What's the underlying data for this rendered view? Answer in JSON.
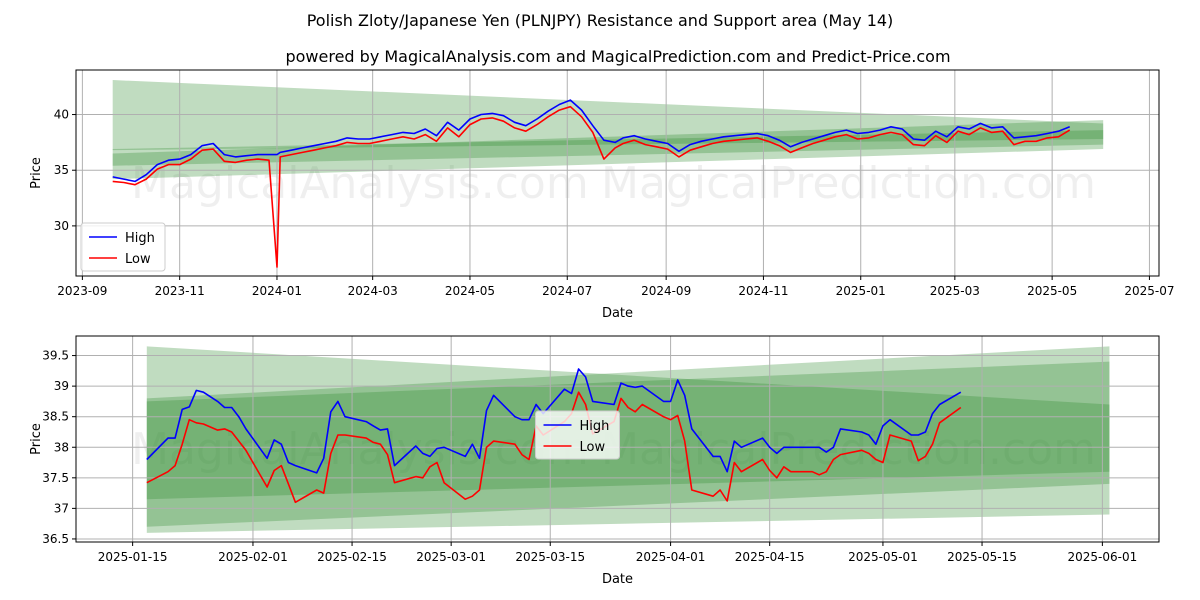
{
  "title": "Polish Zloty/Japanese Yen (PLNJPY) Resistance and Support area (May 14)",
  "subtitle": "powered by MagicalAnalysis.com and MagicalPrediction.com and Predict-Price.com",
  "watermarks": [
    "MagicalAnalysis.com",
    "MagicalPrediction.com"
  ],
  "colors": {
    "high": "#0000ff",
    "low": "#ff0000",
    "band": "#2e8b2e",
    "grid": "#b0b0b0"
  },
  "chart_data": [
    {
      "type": "line",
      "xlabel": "Date",
      "ylabel": "Price",
      "xlim": [
        "2023-08-28",
        "2025-07-07"
      ],
      "ylim": [
        25.5,
        44
      ],
      "grid": true,
      "legend_position": "lower-left",
      "x_ticks": [
        "2023-09",
        "2023-11",
        "2024-01",
        "2024-03",
        "2024-05",
        "2024-07",
        "2024-09",
        "2024-11",
        "2025-01",
        "2025-03",
        "2025-05",
        "2025-07"
      ],
      "x_tick_dates": [
        "2023-09-01",
        "2023-11-01",
        "2024-01-01",
        "2024-03-01",
        "2024-05-01",
        "2024-07-01",
        "2024-09-01",
        "2024-11-01",
        "2025-01-01",
        "2025-03-01",
        "2025-05-01",
        "2025-07-01"
      ],
      "y_ticks": [
        30,
        35,
        40
      ],
      "bands": [
        {
          "x": [
            "2023-09-20",
            "2025-06-02"
          ],
          "upper": [
            43.1,
            39.2
          ],
          "lower": [
            36.8,
            37.8
          ]
        },
        {
          "x": [
            "2023-09-20",
            "2025-06-02"
          ],
          "upper": [
            36.5,
            39.5
          ],
          "lower": [
            34.2,
            36.9
          ]
        },
        {
          "x": [
            "2023-09-20",
            "2025-06-02"
          ],
          "upper": [
            36.9,
            38.6
          ],
          "lower": [
            35.4,
            37.3
          ]
        }
      ],
      "series": [
        {
          "name": "High",
          "x": [
            "2023-09-20",
            "2023-09-27",
            "2023-10-04",
            "2023-10-11",
            "2023-10-18",
            "2023-10-25",
            "2023-11-01",
            "2023-11-08",
            "2023-11-15",
            "2023-11-22",
            "2023-11-29",
            "2023-12-06",
            "2023-12-13",
            "2023-12-20",
            "2023-12-27",
            "2024-01-01",
            "2024-01-03",
            "2024-01-10",
            "2024-01-17",
            "2024-01-24",
            "2024-01-31",
            "2024-02-07",
            "2024-02-14",
            "2024-02-21",
            "2024-02-28",
            "2024-03-06",
            "2024-03-13",
            "2024-03-20",
            "2024-03-27",
            "2024-04-03",
            "2024-04-10",
            "2024-04-17",
            "2024-04-24",
            "2024-05-01",
            "2024-05-08",
            "2024-05-15",
            "2024-05-22",
            "2024-05-29",
            "2024-06-05",
            "2024-06-12",
            "2024-06-19",
            "2024-06-26",
            "2024-07-03",
            "2024-07-10",
            "2024-07-17",
            "2024-07-24",
            "2024-07-31",
            "2024-08-05",
            "2024-08-12",
            "2024-08-19",
            "2024-08-26",
            "2024-09-02",
            "2024-09-09",
            "2024-09-16",
            "2024-09-23",
            "2024-09-30",
            "2024-10-07",
            "2024-10-14",
            "2024-10-21",
            "2024-10-28",
            "2024-11-04",
            "2024-11-11",
            "2024-11-18",
            "2024-11-25",
            "2024-12-02",
            "2024-12-09",
            "2024-12-16",
            "2024-12-23",
            "2024-12-30",
            "2025-01-06",
            "2025-01-13",
            "2025-01-20",
            "2025-01-27",
            "2025-02-03",
            "2025-02-10",
            "2025-02-17",
            "2025-02-24",
            "2025-03-03",
            "2025-03-10",
            "2025-03-17",
            "2025-03-24",
            "2025-03-31",
            "2025-04-07",
            "2025-04-14",
            "2025-04-21",
            "2025-04-28",
            "2025-05-05",
            "2025-05-12"
          ],
          "y": [
            34.4,
            34.2,
            34.0,
            34.6,
            35.5,
            35.9,
            36.0,
            36.4,
            37.2,
            37.4,
            36.4,
            36.2,
            36.3,
            36.4,
            36.4,
            36.4,
            36.6,
            36.8,
            37.0,
            37.2,
            37.4,
            37.6,
            37.9,
            37.8,
            37.8,
            38.0,
            38.2,
            38.4,
            38.3,
            38.7,
            38.1,
            39.3,
            38.6,
            39.6,
            40.0,
            40.1,
            39.9,
            39.3,
            39.0,
            39.6,
            40.3,
            40.9,
            41.3,
            40.4,
            39.0,
            37.7,
            37.5,
            37.9,
            38.1,
            37.8,
            37.6,
            37.4,
            36.7,
            37.3,
            37.6,
            37.8,
            38.0,
            38.1,
            38.2,
            38.3,
            38.1,
            37.7,
            37.1,
            37.5,
            37.8,
            38.1,
            38.4,
            38.6,
            38.3,
            38.4,
            38.6,
            38.9,
            38.7,
            37.8,
            37.7,
            38.5,
            38.0,
            38.9,
            38.7,
            39.2,
            38.8,
            38.9,
            37.9,
            38.0,
            38.1,
            38.3,
            38.5,
            38.9
          ]
        },
        {
          "name": "Low",
          "x": [
            "2023-09-20",
            "2023-09-27",
            "2023-10-04",
            "2023-10-11",
            "2023-10-18",
            "2023-10-25",
            "2023-11-01",
            "2023-11-08",
            "2023-11-15",
            "2023-11-22",
            "2023-11-29",
            "2023-12-06",
            "2023-12-13",
            "2023-12-20",
            "2023-12-27",
            "2024-01-01",
            "2024-01-03",
            "2024-01-10",
            "2024-01-17",
            "2024-01-24",
            "2024-01-31",
            "2024-02-07",
            "2024-02-14",
            "2024-02-21",
            "2024-02-28",
            "2024-03-06",
            "2024-03-13",
            "2024-03-20",
            "2024-03-27",
            "2024-04-03",
            "2024-04-10",
            "2024-04-17",
            "2024-04-24",
            "2024-05-01",
            "2024-05-08",
            "2024-05-15",
            "2024-05-22",
            "2024-05-29",
            "2024-06-05",
            "2024-06-12",
            "2024-06-19",
            "2024-06-26",
            "2024-07-03",
            "2024-07-10",
            "2024-07-17",
            "2024-07-24",
            "2024-07-31",
            "2024-08-05",
            "2024-08-12",
            "2024-08-19",
            "2024-08-26",
            "2024-09-02",
            "2024-09-09",
            "2024-09-16",
            "2024-09-23",
            "2024-09-30",
            "2024-10-07",
            "2024-10-14",
            "2024-10-21",
            "2024-10-28",
            "2024-11-04",
            "2024-11-11",
            "2024-11-18",
            "2024-11-25",
            "2024-12-02",
            "2024-12-09",
            "2024-12-16",
            "2024-12-23",
            "2024-12-30",
            "2025-01-06",
            "2025-01-13",
            "2025-01-20",
            "2025-01-27",
            "2025-02-03",
            "2025-02-10",
            "2025-02-17",
            "2025-02-24",
            "2025-03-03",
            "2025-03-10",
            "2025-03-17",
            "2025-03-24",
            "2025-03-31",
            "2025-04-07",
            "2025-04-14",
            "2025-04-21",
            "2025-04-28",
            "2025-05-05",
            "2025-05-12"
          ],
          "y": [
            34.0,
            33.9,
            33.7,
            34.2,
            35.1,
            35.5,
            35.5,
            36.0,
            36.8,
            36.9,
            35.8,
            35.7,
            35.9,
            36.0,
            35.9,
            26.3,
            36.2,
            36.4,
            36.6,
            36.8,
            37.0,
            37.2,
            37.5,
            37.4,
            37.4,
            37.6,
            37.8,
            38.0,
            37.8,
            38.2,
            37.6,
            38.8,
            38.0,
            39.1,
            39.6,
            39.7,
            39.4,
            38.8,
            38.5,
            39.1,
            39.8,
            40.4,
            40.7,
            39.8,
            38.4,
            36.0,
            37.0,
            37.4,
            37.7,
            37.3,
            37.1,
            36.9,
            36.2,
            36.8,
            37.1,
            37.4,
            37.6,
            37.7,
            37.8,
            37.9,
            37.6,
            37.2,
            36.6,
            37.0,
            37.4,
            37.7,
            38.0,
            38.2,
            37.8,
            37.9,
            38.2,
            38.4,
            38.2,
            37.3,
            37.2,
            38.1,
            37.5,
            38.5,
            38.2,
            38.8,
            38.4,
            38.5,
            37.3,
            37.6,
            37.6,
            37.9,
            38.0,
            38.6
          ]
        }
      ]
    },
    {
      "type": "line",
      "xlabel": "Date",
      "ylabel": "Price",
      "xlim": [
        "2025-01-07",
        "2025-06-09"
      ],
      "ylim": [
        36.45,
        39.82
      ],
      "grid": true,
      "legend_position": "center",
      "x_ticks": [
        "2025-01-15",
        "2025-02-01",
        "2025-02-15",
        "2025-03-01",
        "2025-03-15",
        "2025-04-01",
        "2025-04-15",
        "2025-05-01",
        "2025-05-15",
        "2025-06-01"
      ],
      "y_ticks": [
        36.5,
        37.0,
        37.5,
        38.0,
        38.5,
        39.0,
        39.5
      ],
      "bands": [
        {
          "x": [
            "2025-01-17",
            "2025-06-02"
          ],
          "upper": [
            39.65,
            38.7
          ],
          "lower": [
            36.7,
            37.4
          ]
        },
        {
          "x": [
            "2025-01-17",
            "2025-06-02"
          ],
          "upper": [
            38.8,
            39.65
          ],
          "lower": [
            36.6,
            36.9
          ]
        },
        {
          "x": [
            "2025-01-17",
            "2025-06-02"
          ],
          "upper": [
            38.75,
            39.4
          ],
          "lower": [
            37.15,
            37.6
          ]
        }
      ],
      "series": [
        {
          "name": "High",
          "x": [
            "2025-01-17",
            "2025-01-20",
            "2025-01-21",
            "2025-01-22",
            "2025-01-23",
            "2025-01-24",
            "2025-01-25",
            "2025-01-27",
            "2025-01-28",
            "2025-01-29",
            "2025-01-30",
            "2025-01-31",
            "2025-02-03",
            "2025-02-04",
            "2025-02-05",
            "2025-02-06",
            "2025-02-07",
            "2025-02-10",
            "2025-02-11",
            "2025-02-12",
            "2025-02-13",
            "2025-02-14",
            "2025-02-17",
            "2025-02-18",
            "2025-02-19",
            "2025-02-20",
            "2025-02-21",
            "2025-02-24",
            "2025-02-25",
            "2025-02-26",
            "2025-02-27",
            "2025-02-28",
            "2025-03-03",
            "2025-03-04",
            "2025-03-05",
            "2025-03-06",
            "2025-03-07",
            "2025-03-10",
            "2025-03-11",
            "2025-03-12",
            "2025-03-13",
            "2025-03-14",
            "2025-03-17",
            "2025-03-18",
            "2025-03-19",
            "2025-03-20",
            "2025-03-21",
            "2025-03-24",
            "2025-03-25",
            "2025-03-26",
            "2025-03-27",
            "2025-03-28",
            "2025-03-31",
            "2025-04-01",
            "2025-04-02",
            "2025-04-03",
            "2025-04-04",
            "2025-04-07",
            "2025-04-08",
            "2025-04-09",
            "2025-04-10",
            "2025-04-11",
            "2025-04-14",
            "2025-04-15",
            "2025-04-16",
            "2025-04-17",
            "2025-04-18",
            "2025-04-21",
            "2025-04-22",
            "2025-04-23",
            "2025-04-24",
            "2025-04-25",
            "2025-04-28",
            "2025-04-29",
            "2025-04-30",
            "2025-05-01",
            "2025-05-02",
            "2025-05-05",
            "2025-05-06",
            "2025-05-07",
            "2025-05-08",
            "2025-05-09",
            "2025-05-12"
          ],
          "y": [
            37.8,
            38.15,
            38.15,
            38.62,
            38.66,
            38.93,
            38.9,
            38.75,
            38.65,
            38.65,
            38.5,
            38.3,
            37.82,
            38.12,
            38.05,
            37.75,
            37.7,
            37.58,
            37.82,
            38.58,
            38.75,
            38.5,
            38.42,
            38.35,
            38.28,
            38.3,
            37.7,
            38.02,
            37.9,
            37.85,
            37.98,
            38.0,
            37.85,
            38.05,
            37.82,
            38.6,
            38.85,
            38.5,
            38.45,
            38.45,
            38.7,
            38.55,
            38.95,
            38.88,
            39.28,
            39.15,
            38.75,
            38.7,
            39.05,
            39.0,
            38.98,
            39.0,
            38.75,
            38.75,
            39.1,
            38.85,
            38.3,
            37.85,
            37.85,
            37.6,
            38.1,
            38.0,
            38.15,
            38.0,
            37.9,
            38.0,
            38.0,
            38.0,
            38.0,
            37.92,
            38.0,
            38.3,
            38.25,
            38.2,
            38.05,
            38.35,
            38.45,
            38.2,
            38.2,
            38.25,
            38.55,
            38.7,
            38.9
          ]
        },
        {
          "name": "Low",
          "x": [
            "2025-01-17",
            "2025-01-20",
            "2025-01-21",
            "2025-01-22",
            "2025-01-23",
            "2025-01-24",
            "2025-01-25",
            "2025-01-27",
            "2025-01-28",
            "2025-01-29",
            "2025-01-30",
            "2025-01-31",
            "2025-02-03",
            "2025-02-04",
            "2025-02-05",
            "2025-02-06",
            "2025-02-07",
            "2025-02-10",
            "2025-02-11",
            "2025-02-12",
            "2025-02-13",
            "2025-02-14",
            "2025-02-17",
            "2025-02-18",
            "2025-02-19",
            "2025-02-20",
            "2025-02-21",
            "2025-02-24",
            "2025-02-25",
            "2025-02-26",
            "2025-02-27",
            "2025-02-28",
            "2025-03-03",
            "2025-03-04",
            "2025-03-05",
            "2025-03-06",
            "2025-03-07",
            "2025-03-10",
            "2025-03-11",
            "2025-03-12",
            "2025-03-13",
            "2025-03-14",
            "2025-03-17",
            "2025-03-18",
            "2025-03-19",
            "2025-03-20",
            "2025-03-21",
            "2025-03-24",
            "2025-03-25",
            "2025-03-26",
            "2025-03-27",
            "2025-03-28",
            "2025-03-31",
            "2025-04-01",
            "2025-04-02",
            "2025-04-03",
            "2025-04-04",
            "2025-04-07",
            "2025-04-08",
            "2025-04-09",
            "2025-04-10",
            "2025-04-11",
            "2025-04-14",
            "2025-04-15",
            "2025-04-16",
            "2025-04-17",
            "2025-04-18",
            "2025-04-21",
            "2025-04-22",
            "2025-04-23",
            "2025-04-24",
            "2025-04-25",
            "2025-04-28",
            "2025-04-29",
            "2025-04-30",
            "2025-05-01",
            "2025-05-02",
            "2025-05-05",
            "2025-05-06",
            "2025-05-07",
            "2025-05-08",
            "2025-05-09",
            "2025-05-12"
          ],
          "y": [
            37.42,
            37.6,
            37.7,
            38.05,
            38.45,
            38.4,
            38.38,
            38.28,
            38.3,
            38.25,
            38.1,
            37.95,
            37.35,
            37.62,
            37.7,
            37.4,
            37.1,
            37.3,
            37.25,
            37.9,
            38.2,
            38.2,
            38.15,
            38.08,
            38.05,
            37.88,
            37.42,
            37.52,
            37.5,
            37.68,
            37.75,
            37.42,
            37.15,
            37.2,
            37.3,
            38.0,
            38.1,
            38.05,
            37.88,
            37.8,
            38.35,
            38.2,
            38.42,
            38.55,
            38.9,
            38.7,
            38.22,
            38.42,
            38.8,
            38.65,
            38.58,
            38.7,
            38.5,
            38.45,
            38.52,
            38.1,
            37.3,
            37.2,
            37.3,
            37.12,
            37.75,
            37.6,
            37.8,
            37.62,
            37.5,
            37.68,
            37.6,
            37.6,
            37.55,
            37.6,
            37.8,
            37.88,
            37.95,
            37.9,
            37.8,
            37.75,
            38.2,
            38.1,
            37.78,
            37.85,
            38.05,
            38.4,
            38.65
          ]
        }
      ]
    }
  ]
}
